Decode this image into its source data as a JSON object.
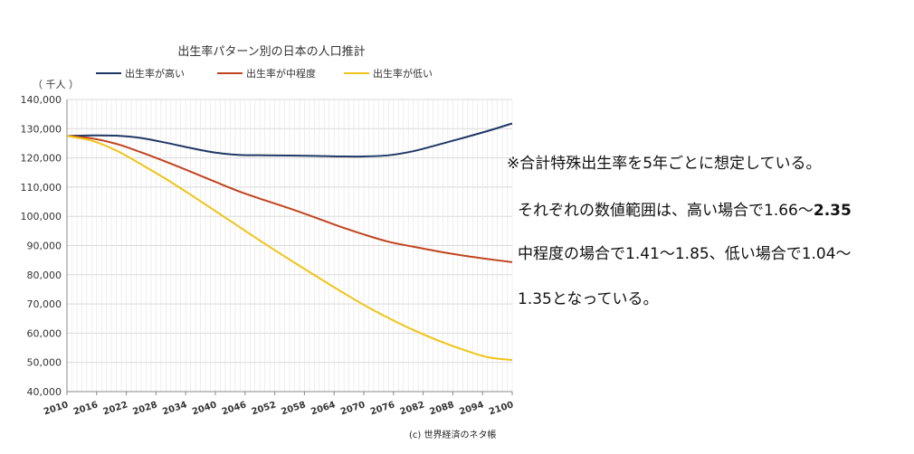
{
  "chart_data": {
    "type": "line",
    "title": "出生率パターン別の日本の人口推計",
    "ylabel": "（ 千人 ）",
    "ylim": [
      40000,
      140000
    ],
    "yticks": [
      40000,
      50000,
      60000,
      70000,
      80000,
      90000,
      100000,
      110000,
      120000,
      130000,
      140000
    ],
    "ytick_labels": [
      "40,000",
      "50,000",
      "60,000",
      "70,000",
      "80,000",
      "90,000",
      "100,000",
      "110,000",
      "120,000",
      "130,000",
      "140,000"
    ],
    "xlim": [
      2010,
      2100
    ],
    "xtick_labels": [
      "2010",
      "2016",
      "2022",
      "2028",
      "2034",
      "2040",
      "2046",
      "2052",
      "2058",
      "2064",
      "2070",
      "2076",
      "2082",
      "2088",
      "2094",
      "2100"
    ],
    "grid": true,
    "legend_position": "top",
    "x": [
      2010,
      2015,
      2020,
      2025,
      2030,
      2035,
      2040,
      2045,
      2050,
      2055,
      2060,
      2065,
      2070,
      2075,
      2080,
      2085,
      2090,
      2095,
      2100
    ],
    "series": [
      {
        "name": "出生率が高い",
        "color": "#1f3864",
        "values": [
          127500,
          127700,
          127600,
          126800,
          125200,
          123400,
          121800,
          121000,
          120900,
          120800,
          120700,
          120500,
          120500,
          120900,
          122300,
          124500,
          126800,
          129200,
          131800
        ]
      },
      {
        "name": "出生率が中程度",
        "color": "#c0441f",
        "values": [
          127500,
          126700,
          124800,
          121900,
          118700,
          115300,
          111800,
          108400,
          105500,
          102700,
          99700,
          96600,
          93800,
          91300,
          89600,
          88000,
          86600,
          85400,
          84300
        ]
      },
      {
        "name": "出生率が低い",
        "color": "#f0c419",
        "values": [
          127500,
          125900,
          122500,
          117800,
          112800,
          107400,
          101800,
          96200,
          90600,
          85200,
          79900,
          74700,
          69700,
          65200,
          61100,
          57500,
          54400,
          51800,
          50800
        ]
      }
    ]
  },
  "notes": {
    "line1": "※合計特殊出生率を5年ごとに想定している。",
    "line2_a": "それぞれの数値範囲は、高い場合で1.66～",
    "line2_b": "2.35",
    "line3": "中程度の場合で1.41～1.85、低い場合で1.04～",
    "line4": "1.35となっている。"
  },
  "credit": "(c) 世界経済のネタ帳"
}
